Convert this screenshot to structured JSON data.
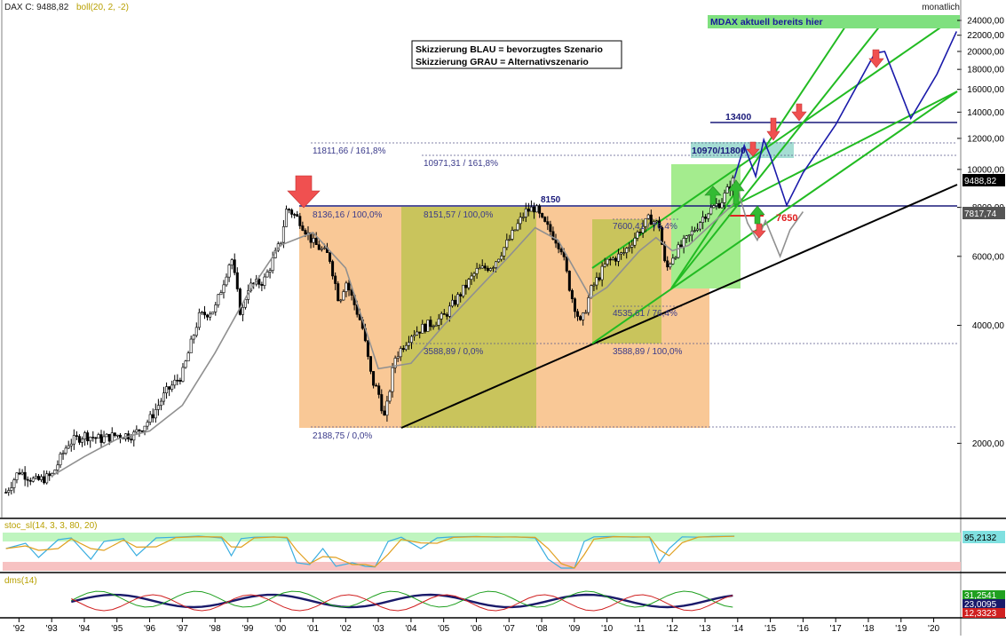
{
  "header": {
    "instrument": "DAX C: 9488,82",
    "indicator": "boll(20, 2, -2)",
    "period": "monatlich"
  },
  "legend_box": {
    "line1": "Skizzierung BLAU = bevorzugtes Szenario",
    "line2": "Skizzierung GRAU = Alternativszenario"
  },
  "mdax_banner": "MDAX aktuell bereits hier",
  "price_badges": {
    "current": "9488,82",
    "secondary": "7817,74"
  },
  "fib_labels": {
    "high1": "8136,16 / 100,0%",
    "high2": "8151,57 / 100,0%",
    "low1": "2188,75 / 0,0%",
    "low2": "3588,89 / 0,0%",
    "ext1": "11811,66 / 161,8%",
    "ext2": "10971,31 / 161,8%",
    "r1": "7600,41 / 76,4%",
    "r2": "4535,61 / 76,4%",
    "r3": "3588,89 / 100,0%"
  },
  "level_labels": {
    "peak": "8150",
    "target1": "13400",
    "zone": "10970/11800",
    "support": "7650"
  },
  "y_axis_ticks": [
    "24000,00",
    "22000,00",
    "20000,00",
    "18000,00",
    "16000,00",
    "14000,00",
    "12000,00",
    "10000,00",
    "8000,00",
    "6000,00",
    "4000,00",
    "2000,00"
  ],
  "x_axis_ticks": [
    "'92",
    "'93",
    "'94",
    "'95",
    "'96",
    "'97",
    "'98",
    "'99",
    "'00",
    "'01",
    "'02",
    "'03",
    "'04",
    "'05",
    "'06",
    "'07",
    "'08",
    "'09",
    "'10",
    "'11",
    "'12",
    "'13",
    "'14",
    "'15",
    "'16",
    "'17",
    "'18",
    "'19",
    "'20"
  ],
  "stoch_panel": {
    "label": "stoc_sl(14, 3, 3, 80, 20)",
    "value": "95,2132"
  },
  "dms_panel": {
    "label": "dms(14)",
    "values": [
      "31,2541",
      "23,0095",
      "12,3323"
    ]
  },
  "colors": {
    "orange_zone": "#f9c896",
    "olive_zone": "#c9c45c",
    "green_zone": "#a4ec8e",
    "blue_projection": "#1a1aaa",
    "grey_projection": "#909090",
    "trend_green": "#22bb22",
    "arrow_red": "#f05050",
    "stoch_green": "#bff5bf",
    "stoch_red": "#f7c2c2"
  },
  "chart_data": {
    "type": "line",
    "title": "DAX C: 9488,82",
    "scale": "log",
    "ylim": [
      1300,
      26500
    ],
    "xlim": [
      1991.5,
      2020.8
    ],
    "series": [
      {
        "name": "DAX C",
        "x": [
          1991.6,
          1992.0,
          1992.5,
          1993.0,
          1993.5,
          1994.0,
          1994.5,
          1995.0,
          1995.5,
          1996.0,
          1996.5,
          1997.0,
          1997.5,
          1998.0,
          1998.5,
          1998.8,
          1999.0,
          1999.5,
          2000.0,
          2000.2,
          2000.6,
          2001.0,
          2001.5,
          2001.8,
          2002.0,
          2002.5,
          2002.8,
          2003.0,
          2003.2,
          2003.5,
          2004.0,
          2004.5,
          2005.0,
          2005.5,
          2006.0,
          2006.5,
          2007.0,
          2007.5,
          2007.8,
          2008.0,
          2008.3,
          2008.6,
          2008.9,
          2009.2,
          2009.5,
          2010.0,
          2010.5,
          2011.0,
          2011.3,
          2011.6,
          2011.8,
          2012.0,
          2012.5,
          2013.0,
          2013.5,
          2013.9
        ],
        "values": [
          1500,
          1700,
          1600,
          1650,
          2000,
          2100,
          2050,
          2100,
          2100,
          2300,
          2700,
          3000,
          4200,
          4400,
          6000,
          4200,
          5000,
          5200,
          6500,
          8000,
          7400,
          6500,
          6000,
          4600,
          5200,
          4000,
          2900,
          2700,
          2300,
          3300,
          3800,
          4000,
          4200,
          4800,
          5500,
          5700,
          6600,
          7800,
          8000,
          7400,
          6900,
          6300,
          4800,
          4000,
          4900,
          5800,
          6100,
          7000,
          7500,
          7200,
          5500,
          6000,
          6700,
          7700,
          8300,
          9488
        ]
      },
      {
        "name": "boll(20, 2, -2)",
        "x": [
          1993.0,
          1994.0,
          1995.0,
          1996.0,
          1997.0,
          1998.0,
          1999.0,
          2000.0,
          2001.0,
          2002.0,
          2003.0,
          2004.0,
          2005.0,
          2006.0,
          2007.0,
          2007.8,
          2008.5,
          2009.5,
          2010.0,
          2011.0,
          2011.5,
          2012.0,
          2012.5,
          2013.0,
          2013.9
        ],
        "values": [
          1650,
          1850,
          2050,
          2150,
          2500,
          3400,
          4800,
          6400,
          6900,
          5600,
          3100,
          3200,
          4000,
          4900,
          6000,
          7100,
          6600,
          4700,
          5000,
          6200,
          6700,
          6200,
          6400,
          7000,
          8200
        ]
      }
    ],
    "projection_blue": {
      "x": [
        2013.9,
        2014.2,
        2014.55,
        2014.8,
        2015.0,
        2015.5,
        2016.0,
        2017.0,
        2018.2,
        2018.5,
        2019.3,
        2020.1,
        2020.7
      ],
      "values": [
        9488,
        11500,
        9600,
        11900,
        10800,
        8100,
        9800,
        13000,
        19800,
        20000,
        13500,
        17500,
        22500
      ]
    },
    "projection_grey": {
      "x": [
        2013.9,
        2014.3,
        2014.6,
        2014.85,
        2015.3,
        2015.6,
        2016.0
      ],
      "values": [
        9488,
        7300,
        6600,
        7400,
        6000,
        7000,
        7800
      ]
    },
    "horizontal_levels": [
      8150,
      13400,
      11811.66,
      10971.31,
      3588.89,
      2188.75,
      7650
    ]
  },
  "stoch_series": {
    "x": [
      1991.6,
      1992.2,
      1992.6,
      1993.2,
      1993.6,
      1994.2,
      1994.6,
      1995.2,
      1995.6,
      1996.2,
      1996.8,
      1997.5,
      1998.2,
      1998.5,
      1998.8,
      1999.2,
      1999.8,
      2000.2,
      2000.5,
      2000.9,
      2001.3,
      2001.7,
      2002.2,
      2002.6,
      2002.9,
      2003.3,
      2003.7,
      2004.3,
      2004.8,
      2005.3,
      2006.0,
      2006.6,
      2007.2,
      2007.8,
      2008.2,
      2008.6,
      2009.0,
      2009.3,
      2009.6,
      2010.2,
      2010.8,
      2011.3,
      2011.6,
      2011.9,
      2012.3,
      2012.8,
      2013.2,
      2013.9
    ],
    "values": [
      60,
      75,
      35,
      85,
      90,
      30,
      80,
      88,
      40,
      90,
      92,
      95,
      90,
      40,
      88,
      92,
      93,
      90,
      20,
      15,
      60,
      10,
      20,
      10,
      8,
      80,
      92,
      60,
      90,
      93,
      94,
      92,
      93,
      90,
      30,
      5,
      5,
      80,
      93,
      94,
      92,
      93,
      20,
      60,
      93,
      92,
      94,
      95
    ]
  }
}
